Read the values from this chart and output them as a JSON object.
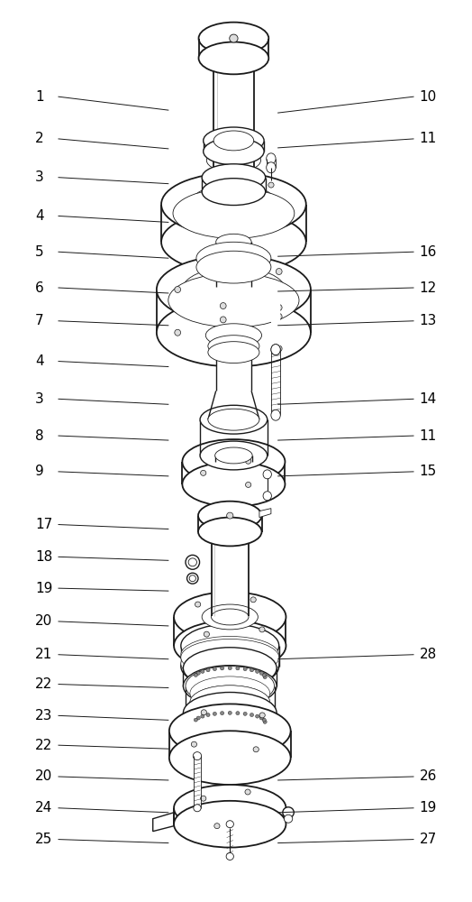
{
  "bg_color": "#ffffff",
  "lc": "#1a1a1a",
  "fig_width": 5.24,
  "fig_height": 10.0,
  "dpi": 100,
  "d1_labels_left": [
    {
      "num": "1",
      "xt": 0.07,
      "yt": 0.895,
      "xe": 0.355,
      "ye": 0.88
    },
    {
      "num": "2",
      "xt": 0.07,
      "yt": 0.848,
      "xe": 0.355,
      "ye": 0.837
    },
    {
      "num": "3",
      "xt": 0.07,
      "yt": 0.805,
      "xe": 0.355,
      "ye": 0.798
    },
    {
      "num": "4",
      "xt": 0.07,
      "yt": 0.762,
      "xe": 0.355,
      "ye": 0.755
    },
    {
      "num": "5",
      "xt": 0.07,
      "yt": 0.722,
      "xe": 0.355,
      "ye": 0.715
    },
    {
      "num": "6",
      "xt": 0.07,
      "yt": 0.682,
      "xe": 0.355,
      "ye": 0.676
    },
    {
      "num": "7",
      "xt": 0.07,
      "yt": 0.645,
      "xe": 0.355,
      "ye": 0.64
    },
    {
      "num": "4",
      "xt": 0.07,
      "yt": 0.6,
      "xe": 0.355,
      "ye": 0.594
    },
    {
      "num": "3",
      "xt": 0.07,
      "yt": 0.558,
      "xe": 0.355,
      "ye": 0.552
    },
    {
      "num": "8",
      "xt": 0.07,
      "yt": 0.517,
      "xe": 0.355,
      "ye": 0.512
    },
    {
      "num": "9",
      "xt": 0.07,
      "yt": 0.477,
      "xe": 0.355,
      "ye": 0.472
    }
  ],
  "d1_labels_right": [
    {
      "num": "10",
      "xt": 0.93,
      "yt": 0.895,
      "xe": 0.59,
      "ye": 0.877
    },
    {
      "num": "11",
      "xt": 0.93,
      "yt": 0.848,
      "xe": 0.59,
      "ye": 0.838
    },
    {
      "num": "16",
      "xt": 0.93,
      "yt": 0.722,
      "xe": 0.59,
      "ye": 0.717
    },
    {
      "num": "12",
      "xt": 0.93,
      "yt": 0.682,
      "xe": 0.59,
      "ye": 0.678
    },
    {
      "num": "13",
      "xt": 0.93,
      "yt": 0.645,
      "xe": 0.59,
      "ye": 0.64
    },
    {
      "num": "14",
      "xt": 0.93,
      "yt": 0.558,
      "xe": 0.59,
      "ye": 0.552
    },
    {
      "num": "11",
      "xt": 0.93,
      "yt": 0.517,
      "xe": 0.59,
      "ye": 0.512
    },
    {
      "num": "15",
      "xt": 0.93,
      "yt": 0.477,
      "xe": 0.59,
      "ye": 0.472
    }
  ],
  "d2_labels_left": [
    {
      "num": "17",
      "xt": 0.07,
      "yt": 0.418,
      "xe": 0.355,
      "ye": 0.413
    },
    {
      "num": "18",
      "xt": 0.07,
      "yt": 0.382,
      "xe": 0.355,
      "ye": 0.378
    },
    {
      "num": "19",
      "xt": 0.07,
      "yt": 0.347,
      "xe": 0.355,
      "ye": 0.344
    },
    {
      "num": "20",
      "xt": 0.07,
      "yt": 0.31,
      "xe": 0.355,
      "ye": 0.305
    },
    {
      "num": "21",
      "xt": 0.07,
      "yt": 0.273,
      "xe": 0.355,
      "ye": 0.268
    },
    {
      "num": "22",
      "xt": 0.07,
      "yt": 0.24,
      "xe": 0.355,
      "ye": 0.236
    },
    {
      "num": "23",
      "xt": 0.07,
      "yt": 0.205,
      "xe": 0.355,
      "ye": 0.2
    },
    {
      "num": "22",
      "xt": 0.07,
      "yt": 0.172,
      "xe": 0.355,
      "ye": 0.168
    },
    {
      "num": "20",
      "xt": 0.07,
      "yt": 0.137,
      "xe": 0.355,
      "ye": 0.133
    },
    {
      "num": "24",
      "xt": 0.07,
      "yt": 0.102,
      "xe": 0.355,
      "ye": 0.097
    },
    {
      "num": "25",
      "xt": 0.07,
      "yt": 0.067,
      "xe": 0.355,
      "ye": 0.063
    }
  ],
  "d2_labels_right": [
    {
      "num": "28",
      "xt": 0.93,
      "yt": 0.273,
      "xe": 0.59,
      "ye": 0.268
    },
    {
      "num": "26",
      "xt": 0.93,
      "yt": 0.137,
      "xe": 0.59,
      "ye": 0.133
    },
    {
      "num": "19",
      "xt": 0.93,
      "yt": 0.102,
      "xe": 0.59,
      "ye": 0.097
    },
    {
      "num": "27",
      "xt": 0.93,
      "yt": 0.067,
      "xe": 0.59,
      "ye": 0.063
    }
  ],
  "font_size": 11
}
